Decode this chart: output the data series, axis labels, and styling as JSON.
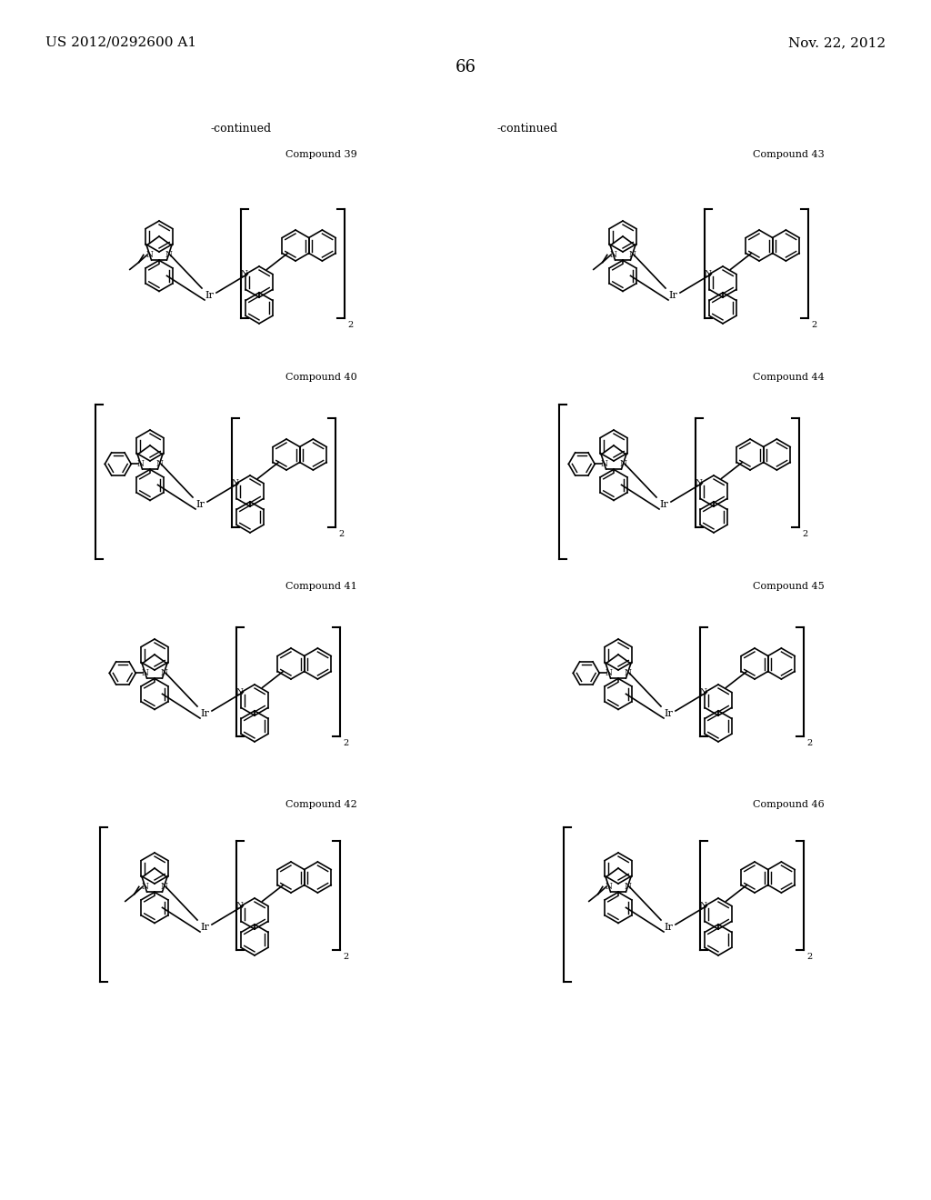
{
  "page_number": "66",
  "patent_number": "US 2012/0292600 A1",
  "patent_date": "Nov. 22, 2012",
  "continued_left": "-continued",
  "continued_right": "-continued",
  "background_color": "#ffffff",
  "text_color": "#000000",
  "compounds": [
    {
      "label": "Compound 39",
      "col": 0,
      "row": 0
    },
    {
      "label": "Compound 40",
      "col": 0,
      "row": 1
    },
    {
      "label": "Compound 41",
      "col": 0,
      "row": 2
    },
    {
      "label": "Compound 42",
      "col": 0,
      "row": 3
    },
    {
      "label": "Compound 43",
      "col": 1,
      "row": 0
    },
    {
      "label": "Compound 44",
      "col": 1,
      "row": 1
    },
    {
      "label": "Compound 45",
      "col": 1,
      "row": 2
    },
    {
      "label": "Compound 46",
      "col": 1,
      "row": 3
    }
  ]
}
